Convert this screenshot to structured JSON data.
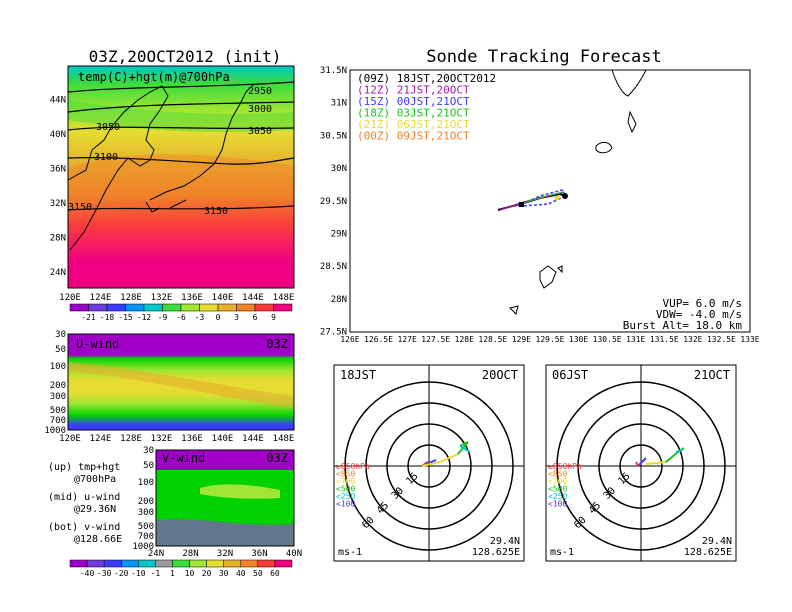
{
  "left_title": "03Z,20OCT2012 (init)",
  "right_title": "Sonde Tracking Forecast",
  "upper_map": {
    "label": "temp(C)+hgt(m)@700hPa",
    "x_ticks": [
      "120E",
      "124E",
      "128E",
      "132E",
      "136E",
      "140E",
      "144E",
      "148E"
    ],
    "y_ticks": [
      "24N",
      "28N",
      "32N",
      "36N",
      "40N",
      "44N"
    ],
    "contour_labels": [
      "2950",
      "3000",
      "3050",
      "3050",
      "3100",
      "3150",
      "3150"
    ],
    "colorbar": [
      "-21",
      "-18",
      "-15",
      "-12",
      "-9",
      "-6",
      "-3",
      "0",
      "3",
      "6",
      "9"
    ]
  },
  "u_panel": {
    "label": "U-wind",
    "time": "03Z",
    "y_ticks": [
      "30",
      "50",
      "100",
      "200",
      "300",
      "500",
      "700",
      "1000"
    ],
    "x_ticks": [
      "120E",
      "124E",
      "128E",
      "132E",
      "136E",
      "140E",
      "144E",
      "148E"
    ]
  },
  "v_panel": {
    "label": "V-wind",
    "time": "03Z",
    "y_ticks": [
      "30",
      "50",
      "100",
      "200",
      "300",
      "500",
      "700",
      "1000"
    ],
    "x_ticks": [
      "24N",
      "28N",
      "32N",
      "36N",
      "40N"
    ],
    "colorbar": [
      "-40",
      "-30",
      "-20",
      "-10",
      "-1",
      "1",
      "10",
      "20",
      "30",
      "40",
      "50",
      "60"
    ]
  },
  "legend_notes": [
    {
      "a": "(up) tmp+hgt",
      "b": "@700hPa"
    },
    {
      "a": "(mid) u-wind",
      "b": "@29.36N"
    },
    {
      "a": "(bot) v-wind",
      "b": "@128.66E"
    }
  ],
  "track_map": {
    "legend": [
      {
        "text": "(09Z) 18JST,20OCT2012",
        "color": "#000000"
      },
      {
        "text": "(12Z) 21JST,20OCT",
        "color": "#a020a0"
      },
      {
        "text": "(15Z) 00JST,21OCT",
        "color": "#3c3cff"
      },
      {
        "text": "(18Z) 03JST,21OCT",
        "color": "#20c020"
      },
      {
        "text": "(21Z) 06JST,21OCT",
        "color": "#e6dc32"
      },
      {
        "text": "(00Z) 09JST,21OCT",
        "color": "#f08228"
      }
    ],
    "x_ticks": [
      "126E",
      "126.5E",
      "127E",
      "127.5E",
      "128E",
      "128.5E",
      "129E",
      "129.5E",
      "130E",
      "130.5E",
      "131E",
      "131.5E",
      "132E",
      "132.5E",
      "133E"
    ],
    "y_ticks": [
      "31.5N",
      "31N",
      "30.5N",
      "30N",
      "29.5N",
      "29N",
      "28.5N",
      "28N",
      "27.5N"
    ],
    "params": [
      "VUP= 6.0 m/s",
      "VDW= -4.0 m/s",
      "Burst Alt= 18.0 km"
    ]
  },
  "hodographs": [
    {
      "left": "18JST",
      "right": "20OCT",
      "rings": [
        "15",
        "30",
        "45",
        "60"
      ],
      "levels": [
        "≥850hPa",
        "<850",
        "<700",
        "<500",
        "<250",
        "<100"
      ],
      "unit": "ms-1",
      "lat": "29.4N",
      "lon": "128.625E"
    },
    {
      "left": "06JST",
      "right": "21OCT",
      "rings": [
        "15",
        "30",
        "45",
        "60"
      ],
      "levels": [
        "≥850hPa",
        "<850",
        "<700",
        "<500",
        "<250",
        "<100"
      ],
      "unit": "ms-1",
      "lat": "29.4N",
      "lon": "128.625E"
    }
  ],
  "colors": {
    "purple": "#a000c8",
    "magenta": "#c800c8",
    "blue": "#3c3cff",
    "cyan": "#00c8c8",
    "green": "#00d200",
    "lime": "#a0e632",
    "yellow": "#e6dc32",
    "gold": "#e6af2d",
    "orange": "#f08228",
    "red": "#fa3c3c",
    "pink": "#f00082"
  }
}
